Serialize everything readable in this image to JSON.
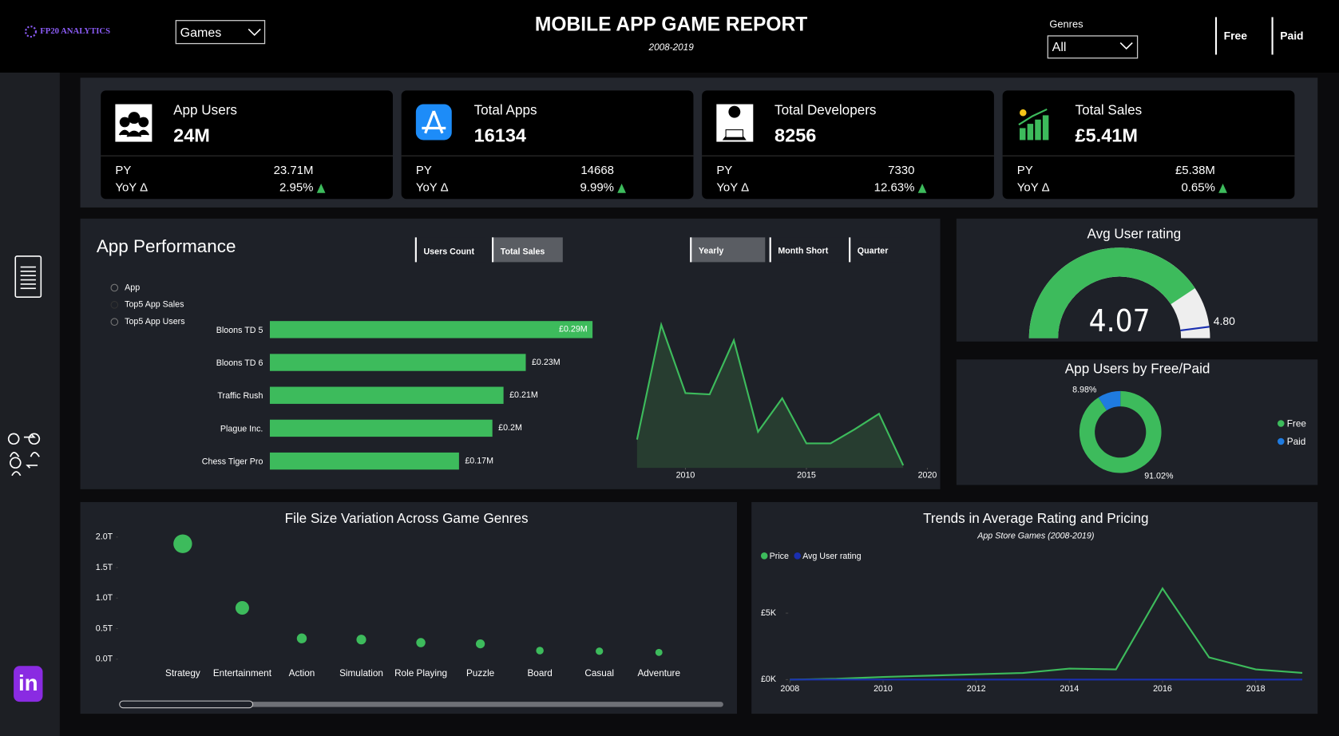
{
  "header": {
    "logo": "FP20 ANALYTICS",
    "category_filter": "Games",
    "title": "MOBILE APP GAME REPORT",
    "subtitle": "2008-2019",
    "genres_label": "Genres",
    "genres_filter": "All",
    "buttons": [
      "Free",
      "Paid"
    ]
  },
  "sidebar": {
    "linkedin": "in"
  },
  "kpis": {
    "py_label": "PY",
    "yoy_label": "YoY Δ",
    "cards": [
      {
        "title": "App Users",
        "value": "24M",
        "py": "23.71M",
        "yoy": "2.95%"
      },
      {
        "title": "Total Apps",
        "value": "16134",
        "py": "14668",
        "yoy": "9.99%"
      },
      {
        "title": "Total Developers",
        "value": "8256",
        "py": "7330",
        "yoy": "12.63%"
      },
      {
        "title": "Total Sales",
        "value": "£5.41M",
        "py": "£5.38M",
        "yoy": "0.65%"
      }
    ]
  },
  "app_performance": {
    "title": "App Performance",
    "measure_toggles": [
      "Users Count",
      "Total Sales"
    ],
    "period_toggles": [
      "Yearly",
      "Month Short",
      "Quarter"
    ],
    "view_options": [
      "App",
      "Top5 App Sales",
      "Top5 App Users"
    ],
    "bar": {
      "type": "bar",
      "categories": [
        "Bloons TD 5",
        "Bloons TD 6",
        "Traffic Rush",
        "Plague Inc.",
        "Chess Tiger Pro"
      ],
      "values": [
        0.29,
        0.23,
        0.21,
        0.2,
        0.17
      ],
      "value_labels": [
        "£0.29M",
        "£0.23M",
        "£0.21M",
        "£0.2M",
        "£0.17M"
      ],
      "color": "#3dbb5c"
    },
    "trend": {
      "type": "area",
      "x": [
        2008,
        2009,
        2010,
        2011,
        2012,
        2013,
        2014,
        2015,
        2016,
        2017,
        2018,
        2019
      ],
      "values": [
        0.22,
        1.11,
        0.58,
        0.57,
        0.99,
        0.28,
        0.54,
        0.19,
        0.19,
        0.3,
        0.42,
        0.02
      ],
      "xlim": [
        2008,
        2020
      ],
      "xticks": [
        2010,
        2015,
        2020
      ],
      "color": "#3dbb5c"
    }
  },
  "avg_user_rating": {
    "type": "gauge",
    "title": "Avg User rating",
    "value": 4.07,
    "target": 4.8,
    "target_label": "4.80",
    "range": [
      0,
      5
    ],
    "color": "#3dbb5c"
  },
  "free_paid": {
    "type": "pie",
    "title": "App Users by Free/Paid",
    "categories": [
      "Free",
      "Paid"
    ],
    "values": [
      91.02,
      8.98
    ],
    "value_labels": [
      "91.02%",
      "8.98%"
    ],
    "colors": [
      "#3dbb5c",
      "#1f7be0"
    ]
  },
  "file_size": {
    "type": "scatter",
    "title": "File Size Variation Across Game Genres",
    "categories": [
      "Strategy",
      "Entertainment",
      "Action",
      "Simulation",
      "Role Playing",
      "Puzzle",
      "Board",
      "Casual",
      "Adventure"
    ],
    "values": [
      1.89,
      0.84,
      0.34,
      0.32,
      0.27,
      0.25,
      0.14,
      0.13,
      0.11
    ],
    "ylim": [
      0,
      2
    ],
    "yticks": [
      {
        "value": 0,
        "label": "0.0T"
      },
      {
        "value": 0.5,
        "label": "0.5T"
      },
      {
        "value": 1,
        "label": "1.0T"
      },
      {
        "value": 1.5,
        "label": "1.5T"
      },
      {
        "value": 2,
        "label": "2.0T"
      }
    ],
    "color": "#3dbb5c"
  },
  "rating_pricing": {
    "type": "line",
    "title": "Trends in Average Rating and Pricing",
    "subtitle": "App Store Games (2008-2019)",
    "x": [
      2008,
      2009,
      2010,
      2011,
      2012,
      2013,
      2014,
      2015,
      2016,
      2017,
      2018,
      2019
    ],
    "series": [
      {
        "name": "Price",
        "color": "#3dbb5c",
        "values": [
          0,
          60,
          200,
          300,
          400,
          500,
          830,
          770,
          6860,
          1670,
          770,
          510
        ]
      },
      {
        "name": "Avg User rating",
        "color": "#1a2fb0",
        "values": [
          4.0,
          3.8,
          3.9,
          4.0,
          4.1,
          4.1,
          4.2,
          4.1,
          4.2,
          4.1,
          4.1,
          4.07
        ]
      }
    ],
    "xlim": [
      2008,
      2019
    ],
    "xticks": [
      2008,
      2010,
      2012,
      2014,
      2016,
      2018
    ],
    "ylim": [
      0,
      7000
    ],
    "yticks": [
      {
        "value": 0,
        "label": "£0K"
      },
      {
        "value": 5000,
        "label": "£5K"
      }
    ]
  }
}
